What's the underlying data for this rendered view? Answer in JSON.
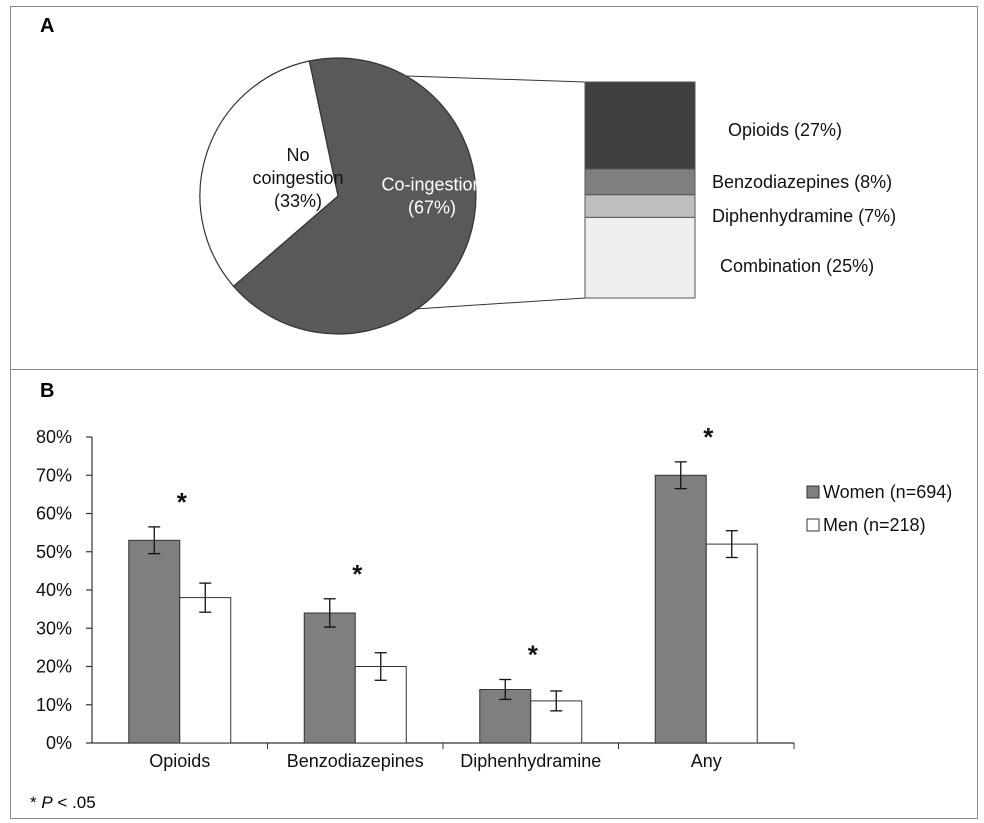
{
  "chart_data": [
    {
      "panel": "A",
      "type": "pie",
      "slices": [
        {
          "label_lines": [
            "No",
            "coingestion",
            "(33%)"
          ],
          "value": 33,
          "color": "#ffffff"
        },
        {
          "label_lines": [
            "Co-ingestion",
            "(67%)"
          ],
          "value": 67,
          "color": "#595959"
        }
      ],
      "breakdown": {
        "type": "stacked-bar",
        "segments": [
          {
            "label": "Opioids (27%)",
            "value": 27,
            "color": "#404040"
          },
          {
            "label": "Benzodiazepines (8%)",
            "value": 8,
            "color": "#7f7f7f"
          },
          {
            "label": "Diphenhydramine (7%)",
            "value": 7,
            "color": "#bfbfbf"
          },
          {
            "label": "Combination (25%)",
            "value": 25,
            "color": "#efefef"
          }
        ]
      }
    },
    {
      "panel": "B",
      "type": "bar",
      "categories": [
        "Opioids",
        "Benzodiazepines",
        "Diphenhydramine",
        "Any"
      ],
      "series": [
        {
          "name": "Women (n=694)",
          "values": [
            53,
            34,
            14,
            70
          ],
          "errors": [
            3.5,
            3.7,
            2.6,
            3.5
          ],
          "color": "#7f7f7f"
        },
        {
          "name": "Men (n=218)",
          "values": [
            38,
            20,
            11,
            52
          ],
          "errors": [
            3.8,
            3.6,
            2.6,
            3.5
          ],
          "color": "#ffffff"
        }
      ],
      "significant": [
        true,
        true,
        true,
        true
      ],
      "ylim": [
        0,
        80
      ],
      "yticks": [
        "0%",
        "10%",
        "20%",
        "30%",
        "40%",
        "50%",
        "60%",
        "70%",
        "80%"
      ],
      "legend_position": "right",
      "footnote": {
        "marker": "* ",
        "italic": "P",
        "rest": " < .05"
      }
    }
  ],
  "labels": {
    "panel_a": "A",
    "panel_b": "B",
    "sig_marker": "*"
  }
}
